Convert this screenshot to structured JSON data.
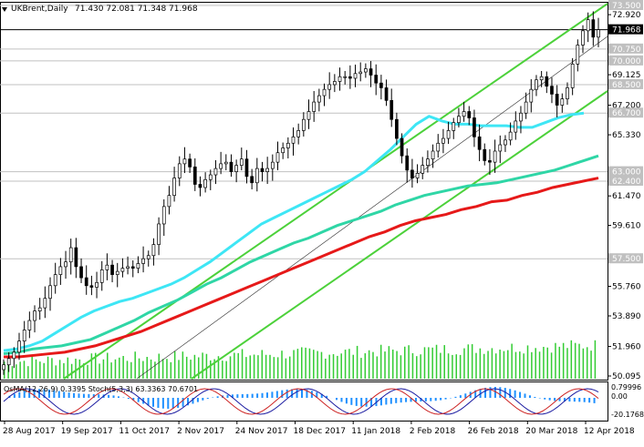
{
  "header": {
    "symbol": "UKBrent,Daily",
    "ohlc": "71.430 72.081 71.348 71.968"
  },
  "indicator_header": "OsMA(12,26,9) 0.3395  Stoch(5,3,3) 63.3363 70.6701",
  "chart_data": {
    "type": "candlestick",
    "title": "UKBrent,Daily",
    "price_axis_labels": [
      "73.500",
      "72.920",
      "71.968",
      "70.750",
      "70.000",
      "69.125",
      "68.500",
      "67.200",
      "66.700",
      "65.330",
      "63.000",
      "62.400",
      "61.470",
      "59.610",
      "57.500",
      "55.760",
      "53.890",
      "51.960",
      "50.095"
    ],
    "highlighted_levels": [
      {
        "price": 73.5,
        "label": "73.500",
        "color": "#c0c0c0"
      },
      {
        "price": 71.968,
        "label": "71.968",
        "color": "#000000"
      },
      {
        "price": 70.75,
        "label": "70.750",
        "color": "#c0c0c0"
      },
      {
        "price": 70.0,
        "label": "70.000",
        "color": "#c0c0c0"
      },
      {
        "price": 68.5,
        "label": "68.500",
        "color": "#c0c0c0"
      },
      {
        "price": 66.7,
        "label": "66.700",
        "color": "#c0c0c0"
      },
      {
        "price": 63.0,
        "label": "63.000",
        "color": "#c0c0c0"
      },
      {
        "price": 62.4,
        "label": "62.400",
        "color": "#c0c0c0"
      },
      {
        "price": 57.5,
        "label": "57.500",
        "color": "#c0c0c0"
      }
    ],
    "date_labels": [
      "28 Aug 2017",
      "19 Sep 2017",
      "11 Oct 2017",
      "2 Nov 2017",
      "24 Nov 2017",
      "18 Dec 2017",
      "11 Jan 2018",
      "2 Feb 2018",
      "26 Feb 2018",
      "20 Mar 2018",
      "12 Apr 2018"
    ],
    "close_path": [
      50.8,
      51.2,
      51.6,
      52.3,
      53.0,
      53.6,
      54.2,
      54.4,
      55.0,
      55.8,
      56.5,
      57.0,
      57.3,
      58.2,
      57.0,
      56.3,
      55.8,
      55.7,
      56.0,
      56.8,
      57.1,
      56.5,
      56.7,
      56.9,
      57.0,
      56.9,
      57.2,
      57.5,
      57.7,
      58.4,
      59.7,
      60.8,
      61.5,
      62.6,
      63.5,
      63.8,
      63.3,
      62.2,
      62.0,
      62.5,
      62.8,
      63.2,
      63.5,
      63.6,
      63.0,
      63.4,
      63.8,
      62.7,
      62.3,
      63.2,
      63.0,
      63.2,
      63.6,
      64.2,
      64.5,
      64.8,
      65.2,
      65.6,
      66.3,
      66.8,
      67.4,
      67.8,
      68.2,
      68.5,
      68.7,
      69.0,
      69.0,
      68.9,
      69.2,
      69.3,
      69.5,
      69.1,
      68.6,
      68.3,
      67.5,
      66.3,
      65.1,
      64.0,
      63.1,
      62.6,
      62.9,
      63.4,
      63.8,
      64.3,
      64.8,
      65.1,
      65.6,
      66.1,
      66.5,
      66.8,
      66.4,
      65.2,
      64.4,
      63.7,
      63.6,
      64.3,
      64.7,
      65.0,
      65.5,
      66.2,
      66.7,
      67.4,
      68.2,
      68.8,
      69.0,
      68.4,
      67.9,
      67.2,
      67.6,
      68.3,
      69.8,
      71.0,
      71.9,
      72.6,
      71.5,
      71.968
    ],
    "moving_averages": [
      {
        "color": "#3ee6f5",
        "values": [
          51.7,
          51.8,
          52.0,
          52.3,
          52.8,
          53.3,
          53.8,
          54.2,
          54.5,
          54.8,
          55.0,
          55.3,
          55.6,
          55.9,
          56.3,
          56.8,
          57.3,
          57.9,
          58.5,
          59.1,
          59.7,
          60.1,
          60.5,
          60.9,
          61.3,
          61.7,
          62.1,
          62.5,
          63.0,
          63.7,
          64.4,
          65.2,
          66.0,
          66.5,
          66.2,
          66.0,
          66.0,
          65.9,
          65.9,
          65.9,
          65.8,
          65.8,
          66.1,
          66.4,
          66.6,
          66.7
        ]
      },
      {
        "color": "#2fd6a6",
        "values": [
          51.5,
          51.6,
          51.8,
          51.9,
          52.0,
          52.2,
          52.4,
          52.8,
          53.2,
          53.6,
          54.1,
          54.5,
          54.9,
          55.4,
          55.9,
          56.3,
          56.8,
          57.3,
          57.7,
          58.1,
          58.5,
          58.8,
          59.2,
          59.6,
          59.9,
          60.2,
          60.5,
          60.9,
          61.2,
          61.5,
          61.7,
          61.9,
          62.1,
          62.2,
          62.3,
          62.5,
          62.7,
          62.9,
          63.1,
          63.4,
          63.7,
          64.0
        ]
      },
      {
        "color": "#e61919",
        "values": [
          51.3,
          51.3,
          51.4,
          51.5,
          51.6,
          51.8,
          52.0,
          52.3,
          52.6,
          52.9,
          53.3,
          53.7,
          54.1,
          54.5,
          54.9,
          55.3,
          55.7,
          56.1,
          56.5,
          56.9,
          57.3,
          57.7,
          58.1,
          58.5,
          58.9,
          59.2,
          59.6,
          59.9,
          60.1,
          60.3,
          60.6,
          60.8,
          61.1,
          61.2,
          61.5,
          61.7,
          62.0,
          62.2,
          62.4,
          62.6
        ]
      }
    ],
    "channel_lines_color": "#4cd13a",
    "subwindow": {
      "osma_color": "#1e90ff",
      "stoch_main_color": "#1a1aa0",
      "stoch_signal_color": "#cc2020",
      "labels": [
        "0.79996",
        "0.00",
        "-20.1768"
      ]
    },
    "volume_color": "#33cc33"
  }
}
